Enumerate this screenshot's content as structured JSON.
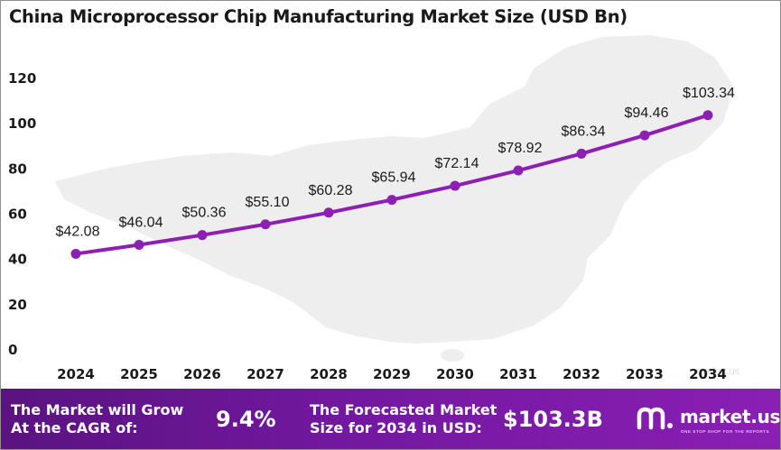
{
  "chart_data": {
    "type": "line",
    "title": "China Microprocessor Chip Manufacturing Market Size (USD Bn)",
    "categories": [
      "2024",
      "2025",
      "2026",
      "2027",
      "2028",
      "2029",
      "2030",
      "2031",
      "2032",
      "2033",
      "2034"
    ],
    "values": [
      42.08,
      46.04,
      50.36,
      55.1,
      60.28,
      65.94,
      72.14,
      78.92,
      86.34,
      94.46,
      103.34
    ],
    "data_labels": [
      "$42.08",
      "$46.04",
      "$50.36",
      "$55.10",
      "$60.28",
      "$65.94",
      "$72.14",
      "$78.92",
      "$86.34",
      "$94.46",
      "$103.34"
    ],
    "y_ticks": [
      0,
      20,
      40,
      60,
      80,
      100,
      120
    ],
    "ylim": [
      0,
      120
    ],
    "grid": false,
    "legend": "none",
    "line_color": "#8e1fb3",
    "marker_color": "#8e1fb3",
    "label_color": "#1a1a1a",
    "background_shape": "map-of-china"
  },
  "footer": {
    "cagr_label": "The Market will Grow\nAt the CAGR of:",
    "cagr_value": "9.4%",
    "forecast_label": "The Forecasted Market\nSize for 2034 in USD:",
    "forecast_value": "$103.3B",
    "brand_name": "market.us",
    "brand_tagline": "ONE STOP SHOP FOR THE REPORTS",
    "brand_icon": "market-us-logo-icon"
  }
}
